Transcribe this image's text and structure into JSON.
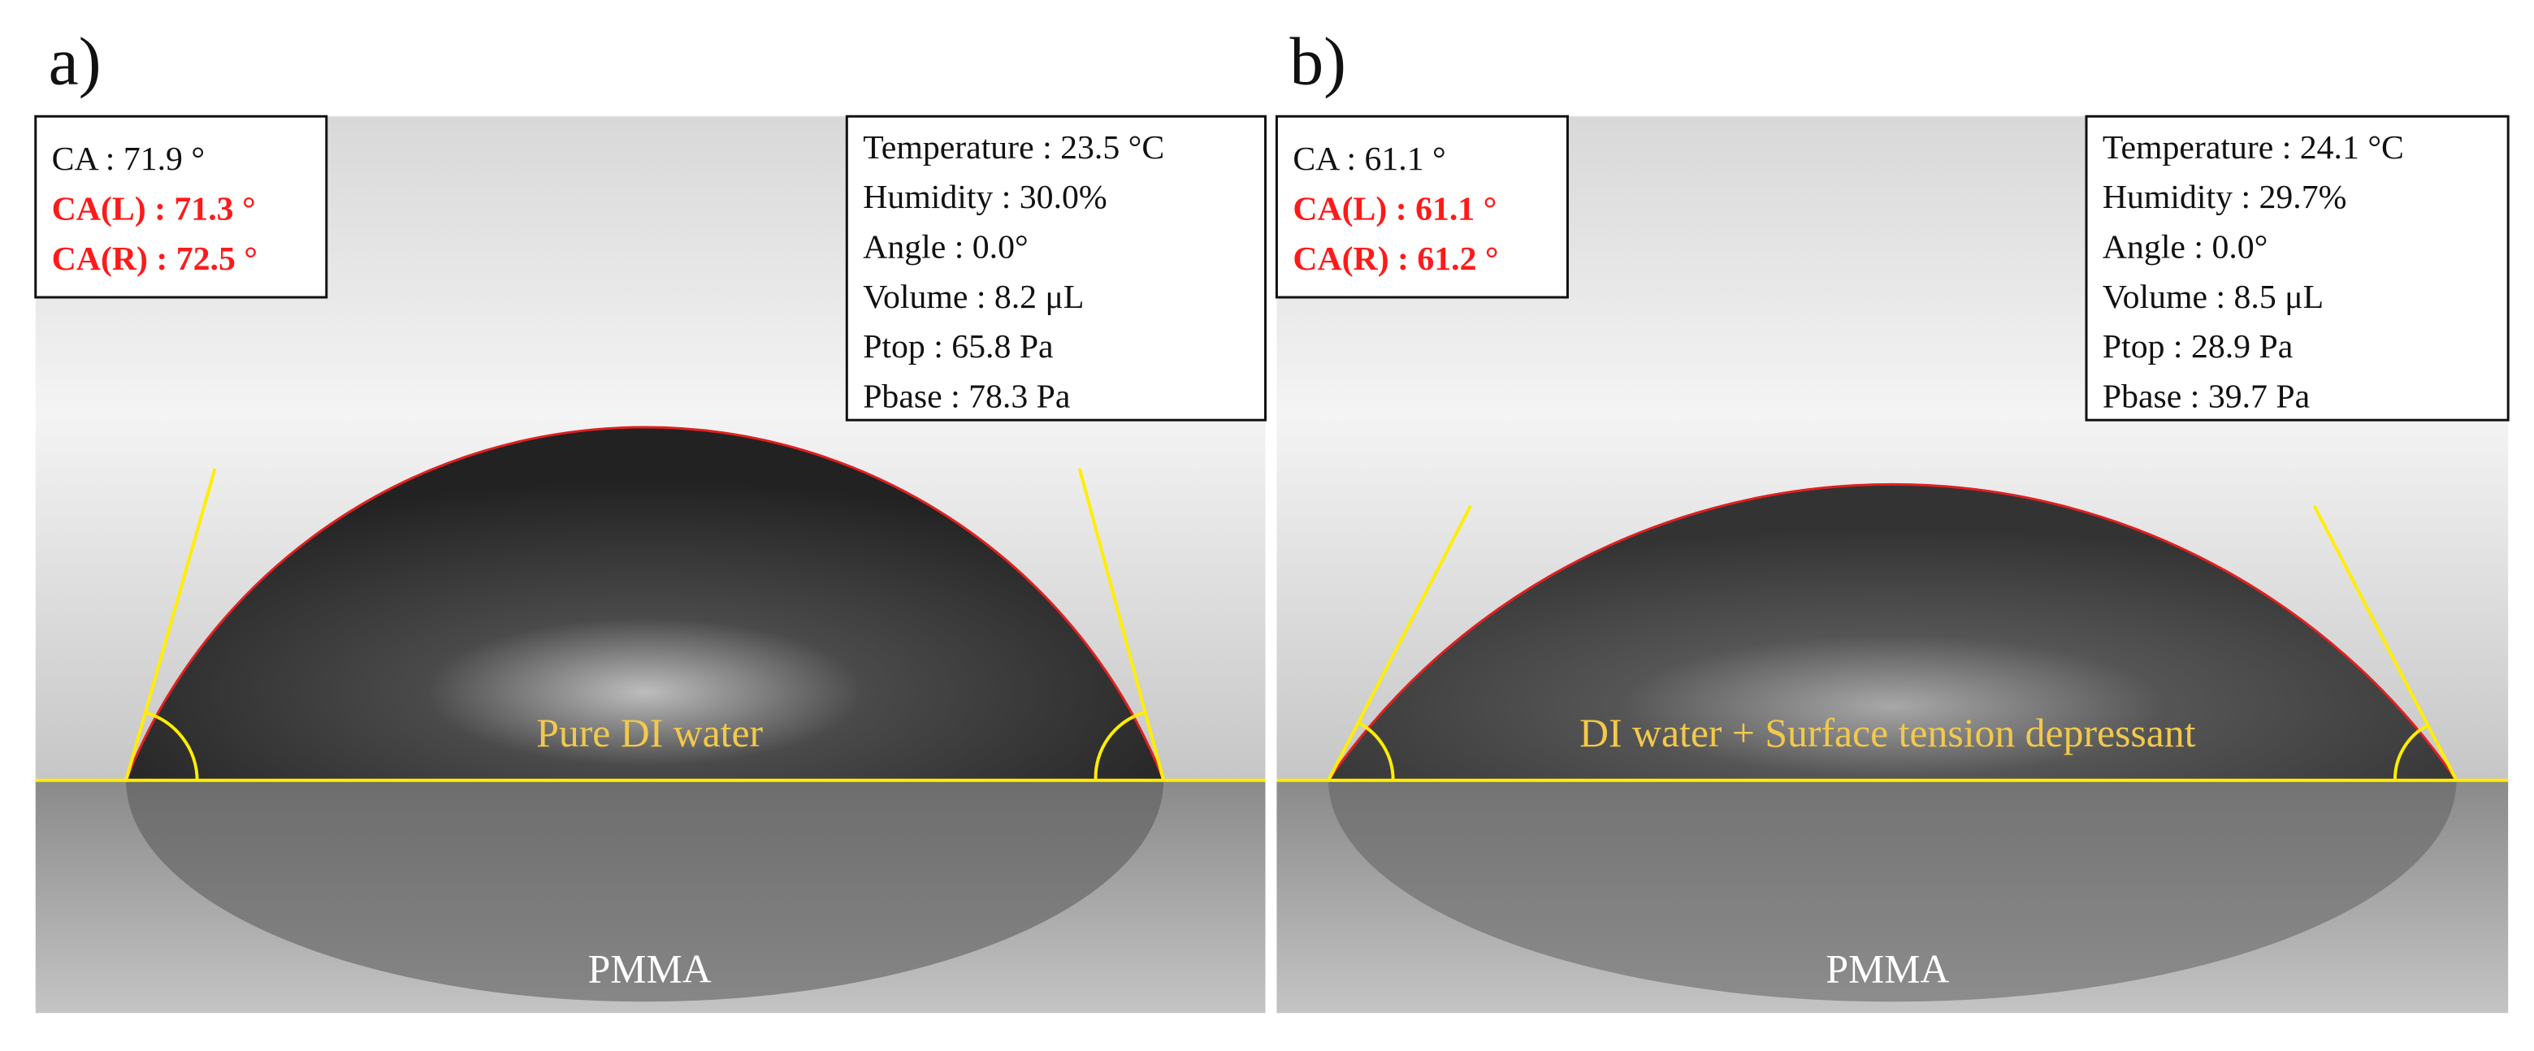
{
  "panels": [
    {
      "label": "a)",
      "ca": "CA : 71.9 °",
      "ca_left": "CA(L) : 71.3 °",
      "ca_right": "CA(R) : 72.5 °",
      "conditions": [
        "Temperature : 23.5 °C",
        "Humidity : 30.0%",
        "Angle : 0.0°",
        "Volume : 8.2 μL",
        "Ptop : 65.8 Pa",
        "Pbase : 78.3 Pa"
      ],
      "liquid": "Pure DI water",
      "substrate": "PMMA"
    },
    {
      "label": "b)",
      "ca": "CA : 61.1 °",
      "ca_left": "CA(L) : 61.1 °",
      "ca_right": "CA(R) : 61.2 °",
      "conditions": [
        "Temperature : 24.1 °C",
        "Humidity : 29.7%",
        "Angle : 0.0°",
        "Volume : 8.5 μL",
        "Ptop : 28.9 Pa",
        "Pbase : 39.7 Pa"
      ],
      "liquid": "DI water + Surface tension depressant",
      "substrate": "PMMA"
    }
  ]
}
